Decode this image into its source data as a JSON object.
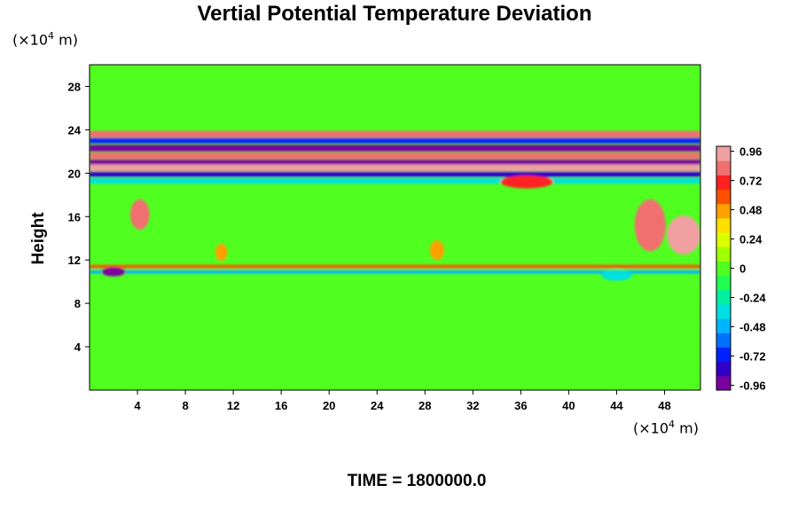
{
  "chart_data": {
    "type": "heatmap",
    "title": "Vertial Potential Temperature Deviation",
    "ylabel": "Height",
    "y_unit": {
      "prefix": "(×10",
      "exp": "4",
      "suffix": " m)"
    },
    "x_unit": {
      "prefix": "(×10",
      "exp": "4",
      "suffix": " m)"
    },
    "xlim": [
      0,
      51
    ],
    "ylim": [
      0,
      30
    ],
    "x_ticks": [
      4,
      8,
      12,
      16,
      20,
      24,
      28,
      32,
      36,
      40,
      44,
      48
    ],
    "y_ticks": [
      4,
      8,
      12,
      16,
      20,
      24,
      28
    ],
    "colorbar": {
      "range": [
        -1.0,
        1.0
      ],
      "tick_labels": [
        "0.96",
        "0.72",
        "0.48",
        "0.24",
        "0",
        "-0.24",
        "-0.48",
        "-0.72",
        "-0.96"
      ],
      "tick_values": [
        0.96,
        0.72,
        0.48,
        0.24,
        0,
        -0.24,
        -0.48,
        -0.72,
        -0.96
      ],
      "colors": [
        "#7a00a0",
        "#3000c8",
        "#0020ff",
        "#0070ff",
        "#00b4ff",
        "#00e0e0",
        "#00f0a0",
        "#20ff50",
        "#50ff20",
        "#a0ff00",
        "#dcff00",
        "#ffe000",
        "#ffa000",
        "#ff5000",
        "#ff2020",
        "#f07070",
        "#f0a0a0"
      ]
    },
    "features": [
      {
        "kind": "band",
        "y": 23.6,
        "thickness": 0.6,
        "value": 0.8
      },
      {
        "kind": "band",
        "y": 23.0,
        "thickness": 0.5,
        "value": -0.7
      },
      {
        "kind": "band",
        "y": 22.3,
        "thickness": 0.6,
        "value": -0.9
      },
      {
        "kind": "band",
        "y": 21.6,
        "thickness": 0.6,
        "value": 0.8
      },
      {
        "kind": "band",
        "y": 21.0,
        "thickness": 0.5,
        "value": -0.95
      },
      {
        "kind": "band",
        "y": 20.5,
        "thickness": 0.6,
        "value": 0.97
      },
      {
        "kind": "band",
        "y": 19.9,
        "thickness": 0.5,
        "value": -0.8
      },
      {
        "kind": "band",
        "y": 19.3,
        "thickness": 0.5,
        "value": -0.3
      },
      {
        "kind": "band",
        "y": 11.4,
        "thickness": 0.3,
        "value": 0.6
      },
      {
        "kind": "band",
        "y": 10.9,
        "thickness": 0.3,
        "value": -0.5
      },
      {
        "kind": "blob",
        "x": 4.2,
        "y": 16.2,
        "rx": 0.8,
        "ry": 1.4,
        "value": 0.8
      },
      {
        "kind": "blob",
        "x": 2.0,
        "y": 10.9,
        "rx": 1.0,
        "ry": 0.4,
        "value": -0.9
      },
      {
        "kind": "blob",
        "x": 46.8,
        "y": 15.2,
        "rx": 1.3,
        "ry": 2.4,
        "value": 0.85
      },
      {
        "kind": "blob",
        "x": 49.6,
        "y": 14.3,
        "rx": 1.4,
        "ry": 1.8,
        "value": 0.9
      },
      {
        "kind": "blob",
        "x": 36.5,
        "y": 19.2,
        "rx": 2.2,
        "ry": 0.6,
        "value": 0.7
      },
      {
        "kind": "blob",
        "x": 11.0,
        "y": 12.7,
        "rx": 0.5,
        "ry": 0.8,
        "value": 0.5
      },
      {
        "kind": "blob",
        "x": 29.0,
        "y": 12.9,
        "rx": 0.6,
        "ry": 0.9,
        "value": 0.5
      },
      {
        "kind": "blob",
        "x": 44.0,
        "y": 10.6,
        "rx": 1.3,
        "ry": 0.5,
        "value": -0.4
      }
    ]
  },
  "time_label": "TIME = 1800000.0"
}
